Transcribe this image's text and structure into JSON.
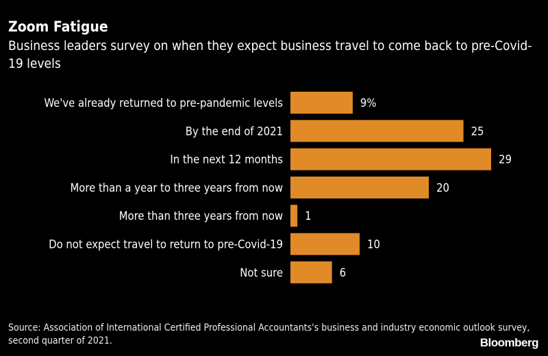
{
  "title": "Zoom Fatigue",
  "subtitle": "Business leaders survey on when they expect business travel to come back to pre-Covid-19 levels",
  "chart_data": {
    "type": "bar",
    "orientation": "horizontal",
    "categories": [
      "We've already returned to pre-pandemic levels",
      "By the end of 2021",
      "In the next 12 months",
      "More than a year to three years from now",
      "More than three years from now",
      "Do not expect travel to return to pre-Covid-19",
      "Not sure"
    ],
    "values": [
      9,
      25,
      29,
      20,
      1,
      10,
      6
    ],
    "data_labels": [
      "9%",
      "25",
      "29",
      "20",
      "1",
      "10",
      "6"
    ],
    "unit": "%",
    "bar_color": "#e08b27",
    "xlim": [
      0,
      29
    ],
    "grid": false
  },
  "source": "Source: Association of International Certified Professional Accountants's business and industry economic outlook survey, second quarter of 2021.",
  "logo": "Bloomberg"
}
